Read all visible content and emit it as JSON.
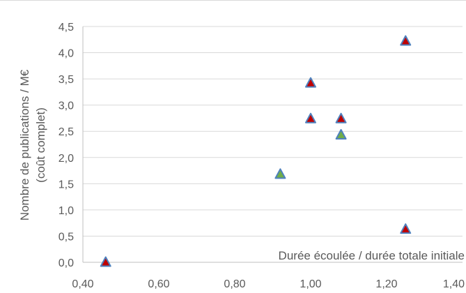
{
  "chart_data": {
    "type": "scatter",
    "title": "",
    "xlabel": "Durée écoulée / durée totale initiale",
    "ylabel_line1": "Nombre de publications / M€",
    "ylabel_line2": "(coût complet)",
    "xlim": [
      0.4,
      1.4
    ],
    "ylim": [
      0.0,
      4.5
    ],
    "x_ticks": [
      0.4,
      0.6,
      0.8,
      1.0,
      1.2,
      1.4
    ],
    "x_tick_labels": [
      "0,40",
      "0,60",
      "0,80",
      "1,00",
      "1,20",
      "1,40"
    ],
    "y_ticks": [
      0.0,
      0.5,
      1.0,
      1.5,
      2.0,
      2.5,
      3.0,
      3.5,
      4.0,
      4.5
    ],
    "y_tick_labels": [
      "0,0",
      "0,5",
      "1,0",
      "1,5",
      "2,0",
      "2,5",
      "3,0",
      "3,5",
      "4,0",
      "4,5"
    ],
    "grid": "horizontal",
    "legend": "none",
    "marker": "triangle",
    "series": [
      {
        "color": "#c00000",
        "stroke": "#4f81bd",
        "points": [
          {
            "x": 0.46,
            "y": 0.0
          },
          {
            "x": 1.0,
            "y": 3.42
          },
          {
            "x": 1.0,
            "y": 2.74
          },
          {
            "x": 1.08,
            "y": 2.74
          },
          {
            "x": 1.25,
            "y": 4.22
          },
          {
            "x": 1.25,
            "y": 0.63
          }
        ]
      },
      {
        "color": "#70ad47",
        "stroke": "#4f81bd",
        "points": [
          {
            "x": 0.92,
            "y": 1.68
          },
          {
            "x": 1.08,
            "y": 2.43
          }
        ]
      }
    ]
  }
}
